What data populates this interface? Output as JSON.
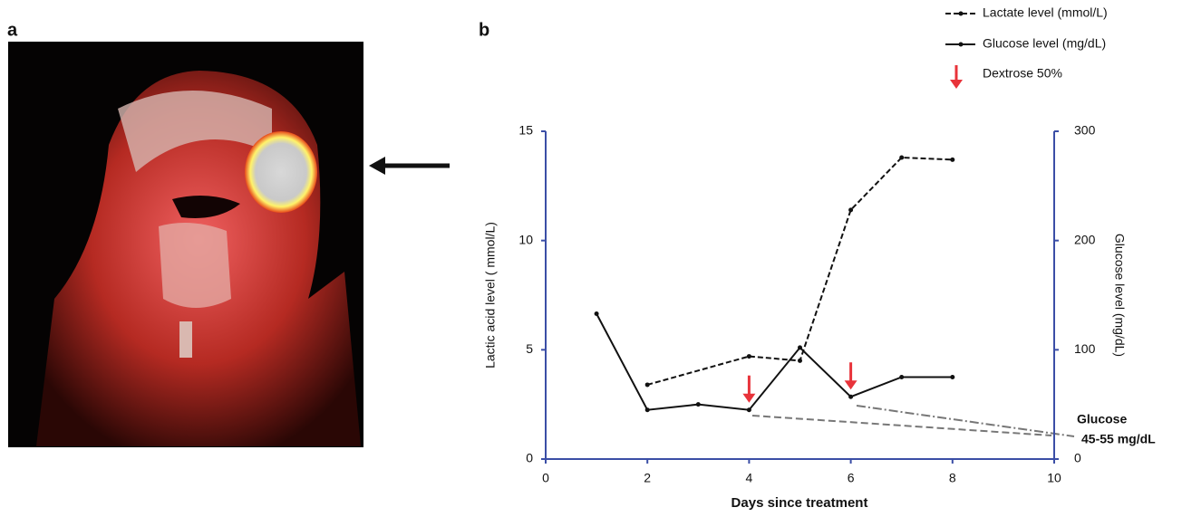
{
  "panel_labels": [
    "a",
    "b"
  ],
  "chart_data": {
    "type": "line",
    "xlabel": "Days since treatment",
    "ylabel": "Lactic acid level ( mmol/L)",
    "y2label": "Glucose level (mg/dL)",
    "xlim": [
      0,
      10
    ],
    "xticks": [
      0,
      2,
      4,
      6,
      8,
      10
    ],
    "ylim": [
      0,
      15
    ],
    "yticks": [
      0,
      5,
      10,
      15
    ],
    "y2lim": [
      0,
      300
    ],
    "y2ticks": [
      0,
      100,
      200,
      300
    ],
    "axis_color": "#3b4ea6",
    "series": [
      {
        "name": "Lactate level (mmol/L)",
        "color": "#111111",
        "dash": true,
        "x": [
          2,
          4,
          5,
          6,
          7,
          8
        ],
        "values": [
          3.4,
          4.7,
          4.5,
          11.4,
          13.8,
          13.7
        ]
      },
      {
        "name": "Glucose level (mg/dL)",
        "color": "#111111",
        "dash": false,
        "axis": "y2",
        "x": [
          1,
          2,
          3,
          4,
          5,
          6,
          7,
          8
        ],
        "values": [
          133,
          45,
          50,
          45,
          102,
          57,
          75,
          75
        ]
      }
    ],
    "event_name": "Dextrose 50%",
    "event_color": "#e8333a",
    "event_days": [
      4,
      6
    ],
    "annotation_lines": [
      "Glucose",
      "45-55 mg/dL"
    ]
  }
}
